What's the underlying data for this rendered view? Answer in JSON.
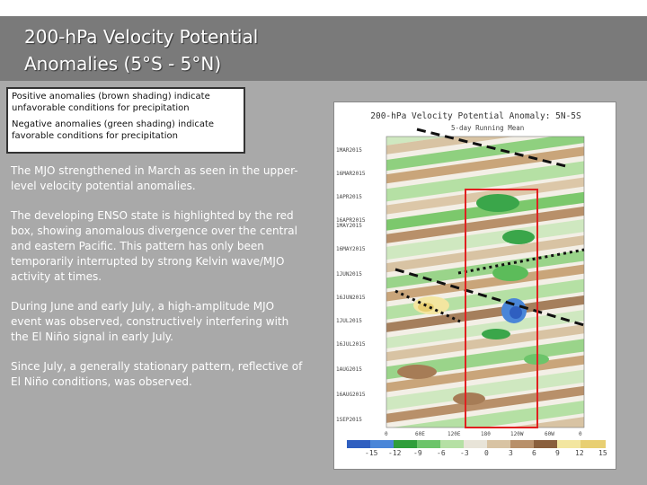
{
  "slide": {
    "title": "200-hPa Velocity Potential\nAnomalies (5°S - 5°N)",
    "legend": {
      "positive": "Positive anomalies (brown shading) indicate unfavorable conditions for precipitation",
      "negative": "Negative anomalies (green shading) indicate favorable conditions for precipitation"
    },
    "paragraphs": [
      "The MJO strengthened in March as seen in the upper-level velocity potential anomalies.",
      "The developing ENSO state is highlighted by the red box, showing anomalous divergence over the central and eastern Pacific. This pattern has only been temporarily interrupted by strong Kelvin wave/MJO activity at times.",
      "During June and early July, a high-amplitude MJO event was observed, constructively interfering with the El Niño signal in early July.",
      "Since July, a generally stationary pattern, reflective of El Niño conditions, was observed."
    ]
  },
  "figure": {
    "title": "200-hPa Velocity Potential Anomaly: 5N-5S",
    "subtitle": "5-day Running Mean",
    "dates": [
      "1MAR2015",
      "16MAR2015",
      "1APR2015",
      "16APR2015",
      "1MAY2015",
      "16MAY2015",
      "1JUN2015",
      "16JUN2015",
      "1JUL2015",
      "16JUL2015",
      "1AUG2015",
      "16AUG2015",
      "1SEP2015"
    ],
    "lons": [
      "0",
      "60E",
      "120E",
      "180",
      "120W",
      "60W",
      "0"
    ],
    "colorbar": [
      "-15",
      "-12",
      "-9",
      "-6",
      "-3",
      "0",
      "3",
      "6",
      "9",
      "12",
      "15"
    ],
    "colors": {
      "highlight_box": "#e02020",
      "negative": "#2f9e3a",
      "positive": "#a0703a"
    }
  }
}
